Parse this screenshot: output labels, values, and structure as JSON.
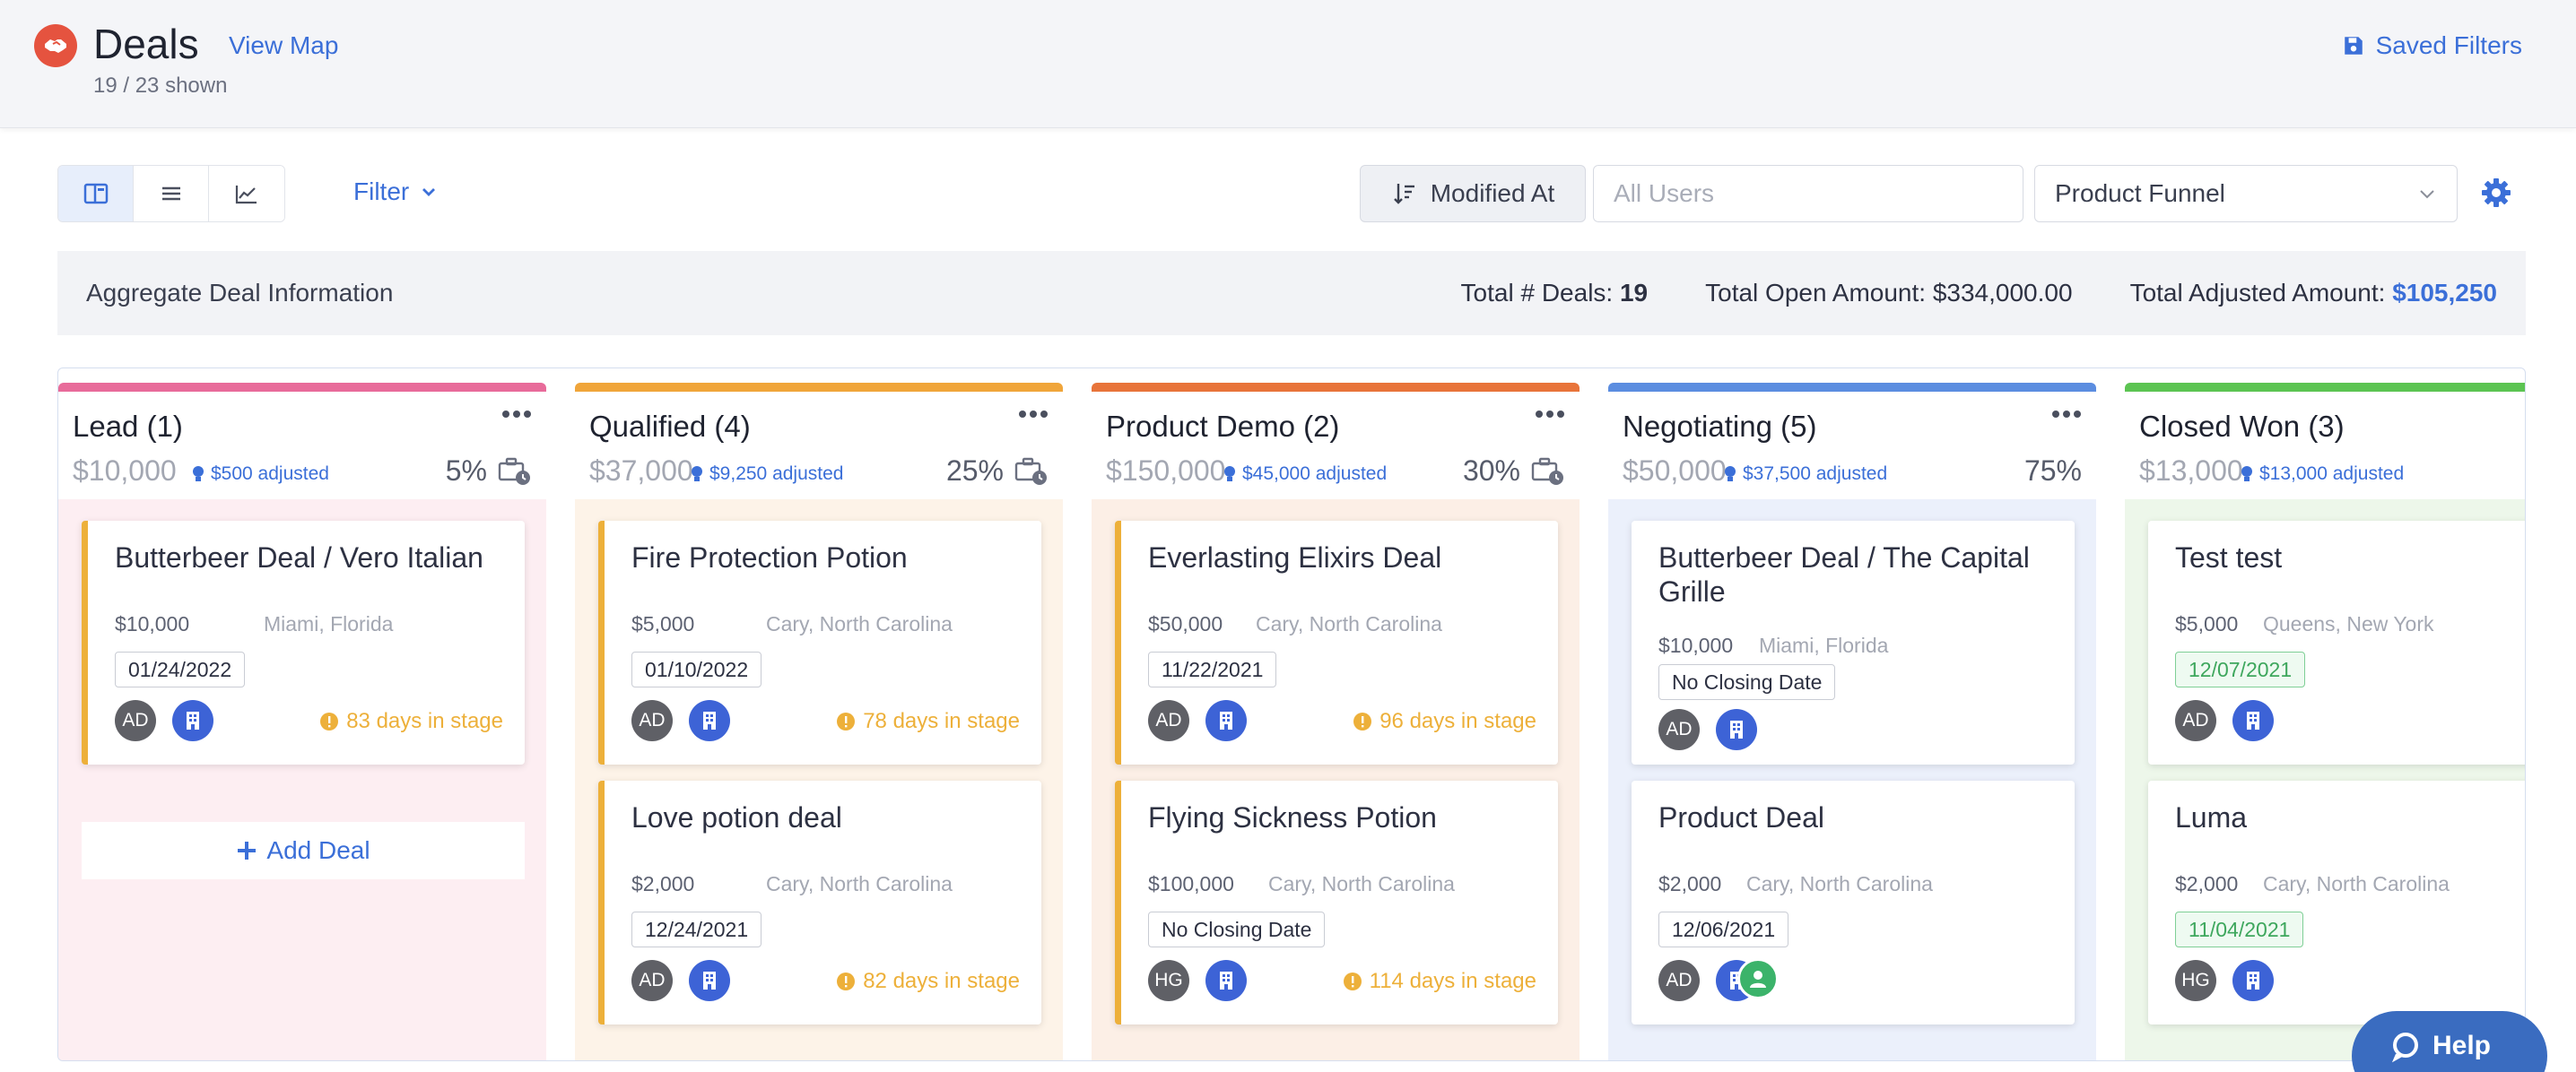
{
  "header": {
    "title": "Deals",
    "view_map": "View Map",
    "subtitle": "19 / 23 shown",
    "saved_filters": "Saved Filters",
    "logo_icon": "handshake-icon"
  },
  "toolbar": {
    "views": [
      "kanban",
      "list",
      "chart"
    ],
    "active_view": "kanban",
    "filter_label": "Filter",
    "sort_label": "Modified At",
    "users_placeholder": "All Users",
    "funnel_value": "Product Funnel"
  },
  "aggregate": {
    "title": "Aggregate Deal Information",
    "total_deals_label": "Total # Deals:",
    "total_deals_value": "19",
    "open_amount_label": "Total Open Amount:",
    "open_amount_value": "$334,000.00",
    "adjusted_label": "Total Adjusted Amount:",
    "adjusted_value": "$105,250"
  },
  "columns": [
    {
      "name": "Lead (1)",
      "amount": "$10,000",
      "adjusted": "$500 adjusted",
      "pct": "5%",
      "color": "#e86b9a",
      "lane_color": "#fdeef2",
      "cards": [
        {
          "title": "Butterbeer Deal / Vero Italian",
          "money": "$10,000",
          "location": "Miami, Florida",
          "date": "01/24/2022",
          "avatar": "AD",
          "days": "83 days in stage"
        }
      ],
      "add_deal": "Add Deal"
    },
    {
      "name": "Qualified (4)",
      "amount": "$37,000",
      "adjusted": "$9,250 adjusted",
      "pct": "25%",
      "color": "#f0a53a",
      "lane_color": "#fdf3e8",
      "cards": [
        {
          "title": "Fire Protection Potion",
          "money": "$5,000",
          "location": "Cary, North Carolina",
          "date": "01/10/2022",
          "avatar": "AD",
          "days": "78 days in stage"
        },
        {
          "title": "Love potion deal",
          "money": "$2,000",
          "location": "Cary, North Carolina",
          "date": "12/24/2021",
          "avatar": "AD",
          "days": "82 days in stage"
        }
      ]
    },
    {
      "name": "Product Demo (2)",
      "amount": "$150,000",
      "adjusted": "$45,000 adjusted",
      "pct": "30%",
      "color": "#e8743a",
      "lane_color": "#fcefe6",
      "cards": [
        {
          "title": "Everlasting Elixirs Deal",
          "money": "$50,000",
          "location": "Cary, North Carolina",
          "date": "11/22/2021",
          "avatar": "AD",
          "days": "96 days in stage"
        },
        {
          "title": "Flying Sickness Potion",
          "money": "$100,000",
          "location": "Cary, North Carolina",
          "date": "No Closing Date",
          "avatar": "HG",
          "days": "114 days in stage"
        }
      ]
    },
    {
      "name": "Negotiating (5)",
      "amount": "$50,000",
      "adjusted": "$37,500 adjusted",
      "pct": "75%",
      "color": "#5b8de0",
      "lane_color": "#ebf0fb",
      "cards": [
        {
          "title": "Butterbeer Deal / The Capital Grille",
          "money": "$10,000",
          "location": "Miami, Florida",
          "date": "No Closing Date",
          "avatar": "AD",
          "days": ""
        },
        {
          "title": "Product Deal",
          "money": "$2,000",
          "location": "Cary, North Carolina",
          "date": "12/06/2021",
          "avatar": "AD",
          "days": ""
        }
      ]
    },
    {
      "name": "Closed Won (3)",
      "amount": "$13,000",
      "adjusted": "$13,000 adjusted",
      "pct": "",
      "color": "#5cc452",
      "lane_color": "#edf7ea",
      "cards": [
        {
          "title": "Test test",
          "money": "$5,000",
          "location": "Queens, New York",
          "date": "12/07/2021",
          "avatar": "AD",
          "days": ""
        },
        {
          "title": "Luma",
          "money": "$2,000",
          "location": "Cary, North Carolina",
          "date": "11/04/2021",
          "avatar": "HG",
          "days": ""
        }
      ]
    }
  ],
  "help": {
    "label": "Help"
  }
}
